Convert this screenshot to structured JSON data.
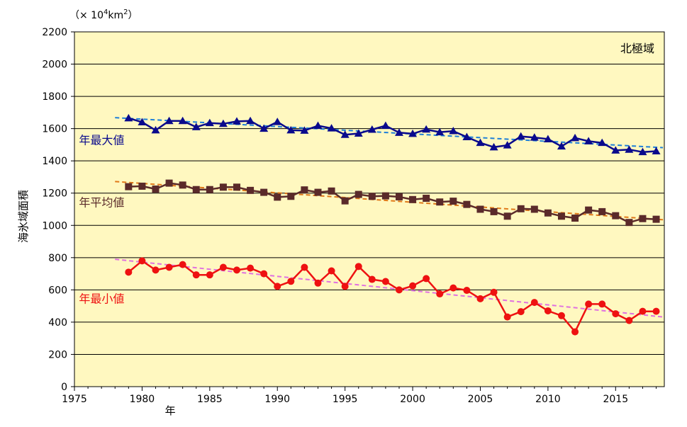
{
  "chart_data": {
    "type": "line",
    "region_label": "北極域",
    "unit_prefix": "（× 10",
    "unit_exp": "4",
    "unit_mid": "km",
    "unit_exp2": "2",
    "unit_suffix": "）",
    "xlabel": "年",
    "ylabel": "海氷域面積",
    "xlim": [
      1975,
      2018.6
    ],
    "ylim": [
      0,
      2200
    ],
    "x_ticks": [
      1975,
      1980,
      1985,
      1990,
      1995,
      2000,
      2005,
      2010,
      2015
    ],
    "y_ticks": [
      0,
      200,
      400,
      600,
      800,
      1000,
      1200,
      1400,
      1600,
      1800,
      2000,
      2200
    ],
    "plot_bg": "#FFF8C0",
    "grid": "horizontal",
    "x": [
      1979,
      1980,
      1981,
      1982,
      1983,
      1984,
      1985,
      1986,
      1987,
      1988,
      1989,
      1990,
      1991,
      1992,
      1993,
      1994,
      1995,
      1996,
      1997,
      1998,
      1999,
      2000,
      2001,
      2002,
      2003,
      2004,
      2005,
      2006,
      2007,
      2008,
      2009,
      2010,
      2011,
      2012,
      2013,
      2014,
      2015,
      2016,
      2017,
      2018
    ],
    "series": [
      {
        "name": "年最大値",
        "color": "#0A0A8C",
        "trend_color": "#1E7FD8",
        "marker": "triangle",
        "trend": [
          [
            1978,
            1668
          ],
          [
            2018.5,
            1482
          ]
        ],
        "label_pos": [
          1979,
          1505
        ],
        "values": [
          1665,
          1640,
          1590,
          1648,
          1648,
          1610,
          1635,
          1630,
          1645,
          1648,
          1600,
          1642,
          1590,
          1588,
          1618,
          1602,
          1562,
          1570,
          1594,
          1618,
          1575,
          1568,
          1595,
          1578,
          1585,
          1548,
          1512,
          1485,
          1497,
          1552,
          1545,
          1535,
          1490,
          1542,
          1522,
          1512,
          1465,
          1470,
          1455,
          1460
        ]
      },
      {
        "name": "年平均値",
        "color": "#5A2A2A",
        "trend_color": "#E07818",
        "marker": "square",
        "trend": [
          [
            1978,
            1272
          ],
          [
            2018.5,
            1035
          ]
        ],
        "label_pos": [
          1979,
          1118
        ],
        "values": [
          1240,
          1243,
          1225,
          1262,
          1250,
          1222,
          1222,
          1237,
          1237,
          1217,
          1205,
          1175,
          1180,
          1220,
          1205,
          1213,
          1152,
          1192,
          1180,
          1183,
          1177,
          1160,
          1168,
          1145,
          1150,
          1130,
          1100,
          1085,
          1057,
          1103,
          1100,
          1077,
          1057,
          1045,
          1095,
          1085,
          1060,
          1018,
          1042,
          1038
        ]
      },
      {
        "name": "年最小値",
        "color": "#EE1111",
        "trend_color": "#E070E0",
        "marker": "circle",
        "trend": [
          [
            1978,
            790
          ],
          [
            2018.5,
            432
          ]
        ],
        "label_pos": [
          1979,
          520
        ],
        "values": [
          710,
          780,
          723,
          740,
          757,
          693,
          693,
          740,
          723,
          735,
          700,
          622,
          653,
          740,
          642,
          718,
          622,
          745,
          665,
          652,
          600,
          625,
          670,
          575,
          612,
          597,
          545,
          585,
          432,
          465,
          522,
          470,
          440,
          340,
          512,
          512,
          452,
          410,
          467,
          467
        ]
      }
    ]
  }
}
